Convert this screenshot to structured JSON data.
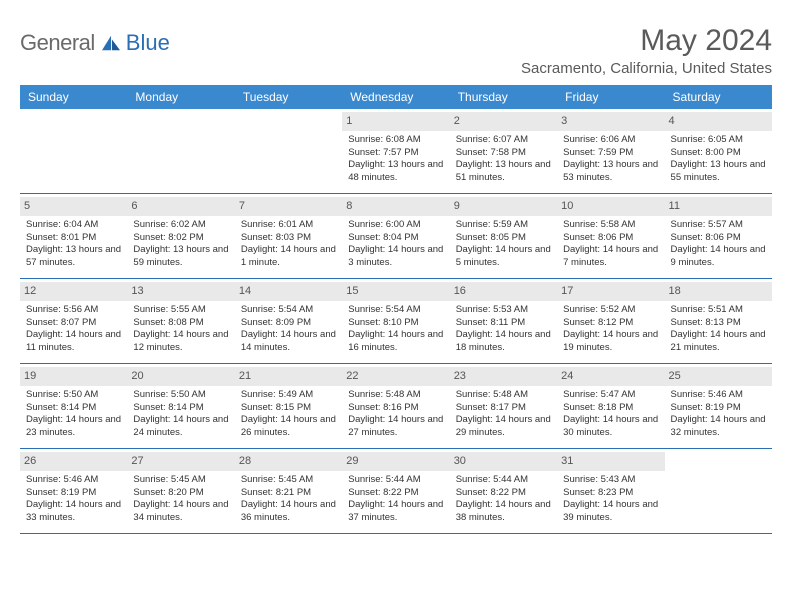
{
  "brand": {
    "name1": "General",
    "name2": "Blue"
  },
  "title": "May 2024",
  "location": "Sacramento, California, United States",
  "colors": {
    "header_bg": "#3a89cf",
    "header_text": "#ffffff",
    "divider": "#2a6fb5",
    "daynum_bg": "#e9e9e9",
    "text": "#333333",
    "brand_gray": "#6a6a6a",
    "brand_blue": "#2a6fb5",
    "page_bg": "#ffffff"
  },
  "typography": {
    "title_fontsize": 30,
    "location_fontsize": 15,
    "dayhead_fontsize": 12,
    "cell_fontsize": 9.5
  },
  "day_headers": [
    "Sunday",
    "Monday",
    "Tuesday",
    "Wednesday",
    "Thursday",
    "Friday",
    "Saturday"
  ],
  "weeks": [
    [
      {
        "day": "",
        "lines": []
      },
      {
        "day": "",
        "lines": []
      },
      {
        "day": "",
        "lines": []
      },
      {
        "day": "1",
        "lines": [
          "Sunrise: 6:08 AM",
          "Sunset: 7:57 PM",
          "Daylight: 13 hours and 48 minutes."
        ]
      },
      {
        "day": "2",
        "lines": [
          "Sunrise: 6:07 AM",
          "Sunset: 7:58 PM",
          "Daylight: 13 hours and 51 minutes."
        ]
      },
      {
        "day": "3",
        "lines": [
          "Sunrise: 6:06 AM",
          "Sunset: 7:59 PM",
          "Daylight: 13 hours and 53 minutes."
        ]
      },
      {
        "day": "4",
        "lines": [
          "Sunrise: 6:05 AM",
          "Sunset: 8:00 PM",
          "Daylight: 13 hours and 55 minutes."
        ]
      }
    ],
    [
      {
        "day": "5",
        "lines": [
          "Sunrise: 6:04 AM",
          "Sunset: 8:01 PM",
          "Daylight: 13 hours and 57 minutes."
        ]
      },
      {
        "day": "6",
        "lines": [
          "Sunrise: 6:02 AM",
          "Sunset: 8:02 PM",
          "Daylight: 13 hours and 59 minutes."
        ]
      },
      {
        "day": "7",
        "lines": [
          "Sunrise: 6:01 AM",
          "Sunset: 8:03 PM",
          "Daylight: 14 hours and 1 minute."
        ]
      },
      {
        "day": "8",
        "lines": [
          "Sunrise: 6:00 AM",
          "Sunset: 8:04 PM",
          "Daylight: 14 hours and 3 minutes."
        ]
      },
      {
        "day": "9",
        "lines": [
          "Sunrise: 5:59 AM",
          "Sunset: 8:05 PM",
          "Daylight: 14 hours and 5 minutes."
        ]
      },
      {
        "day": "10",
        "lines": [
          "Sunrise: 5:58 AM",
          "Sunset: 8:06 PM",
          "Daylight: 14 hours and 7 minutes."
        ]
      },
      {
        "day": "11",
        "lines": [
          "Sunrise: 5:57 AM",
          "Sunset: 8:06 PM",
          "Daylight: 14 hours and 9 minutes."
        ]
      }
    ],
    [
      {
        "day": "12",
        "lines": [
          "Sunrise: 5:56 AM",
          "Sunset: 8:07 PM",
          "Daylight: 14 hours and 11 minutes."
        ]
      },
      {
        "day": "13",
        "lines": [
          "Sunrise: 5:55 AM",
          "Sunset: 8:08 PM",
          "Daylight: 14 hours and 12 minutes."
        ]
      },
      {
        "day": "14",
        "lines": [
          "Sunrise: 5:54 AM",
          "Sunset: 8:09 PM",
          "Daylight: 14 hours and 14 minutes."
        ]
      },
      {
        "day": "15",
        "lines": [
          "Sunrise: 5:54 AM",
          "Sunset: 8:10 PM",
          "Daylight: 14 hours and 16 minutes."
        ]
      },
      {
        "day": "16",
        "lines": [
          "Sunrise: 5:53 AM",
          "Sunset: 8:11 PM",
          "Daylight: 14 hours and 18 minutes."
        ]
      },
      {
        "day": "17",
        "lines": [
          "Sunrise: 5:52 AM",
          "Sunset: 8:12 PM",
          "Daylight: 14 hours and 19 minutes."
        ]
      },
      {
        "day": "18",
        "lines": [
          "Sunrise: 5:51 AM",
          "Sunset: 8:13 PM",
          "Daylight: 14 hours and 21 minutes."
        ]
      }
    ],
    [
      {
        "day": "19",
        "lines": [
          "Sunrise: 5:50 AM",
          "Sunset: 8:14 PM",
          "Daylight: 14 hours and 23 minutes."
        ]
      },
      {
        "day": "20",
        "lines": [
          "Sunrise: 5:50 AM",
          "Sunset: 8:14 PM",
          "Daylight: 14 hours and 24 minutes."
        ]
      },
      {
        "day": "21",
        "lines": [
          "Sunrise: 5:49 AM",
          "Sunset: 8:15 PM",
          "Daylight: 14 hours and 26 minutes."
        ]
      },
      {
        "day": "22",
        "lines": [
          "Sunrise: 5:48 AM",
          "Sunset: 8:16 PM",
          "Daylight: 14 hours and 27 minutes."
        ]
      },
      {
        "day": "23",
        "lines": [
          "Sunrise: 5:48 AM",
          "Sunset: 8:17 PM",
          "Daylight: 14 hours and 29 minutes."
        ]
      },
      {
        "day": "24",
        "lines": [
          "Sunrise: 5:47 AM",
          "Sunset: 8:18 PM",
          "Daylight: 14 hours and 30 minutes."
        ]
      },
      {
        "day": "25",
        "lines": [
          "Sunrise: 5:46 AM",
          "Sunset: 8:19 PM",
          "Daylight: 14 hours and 32 minutes."
        ]
      }
    ],
    [
      {
        "day": "26",
        "lines": [
          "Sunrise: 5:46 AM",
          "Sunset: 8:19 PM",
          "Daylight: 14 hours and 33 minutes."
        ]
      },
      {
        "day": "27",
        "lines": [
          "Sunrise: 5:45 AM",
          "Sunset: 8:20 PM",
          "Daylight: 14 hours and 34 minutes."
        ]
      },
      {
        "day": "28",
        "lines": [
          "Sunrise: 5:45 AM",
          "Sunset: 8:21 PM",
          "Daylight: 14 hours and 36 minutes."
        ]
      },
      {
        "day": "29",
        "lines": [
          "Sunrise: 5:44 AM",
          "Sunset: 8:22 PM",
          "Daylight: 14 hours and 37 minutes."
        ]
      },
      {
        "day": "30",
        "lines": [
          "Sunrise: 5:44 AM",
          "Sunset: 8:22 PM",
          "Daylight: 14 hours and 38 minutes."
        ]
      },
      {
        "day": "31",
        "lines": [
          "Sunrise: 5:43 AM",
          "Sunset: 8:23 PM",
          "Daylight: 14 hours and 39 minutes."
        ]
      },
      {
        "day": "",
        "lines": []
      }
    ]
  ]
}
